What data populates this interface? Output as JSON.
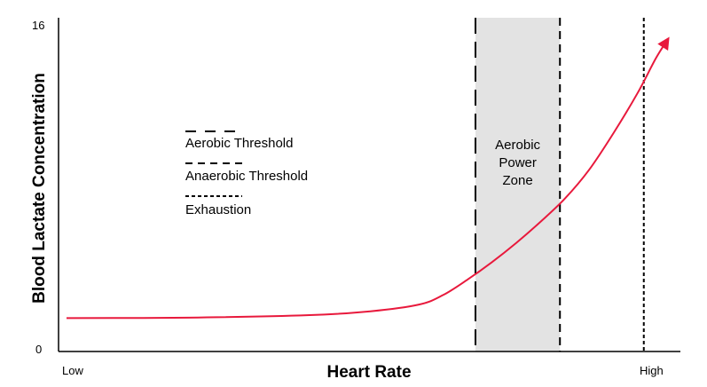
{
  "chart_data": {
    "type": "line",
    "title": "",
    "xlabel": "Heart Rate",
    "ylabel": "Blood Lactate Concentration",
    "xlim": [
      0,
      100
    ],
    "ylim": [
      0,
      16
    ],
    "x_tick_labels": [
      "Low",
      "High"
    ],
    "y_tick_labels": [
      "0",
      "16"
    ],
    "grid": false,
    "colors": {
      "curve": "#e8193c",
      "zone": "#e3e3e3",
      "lines": "#000000"
    },
    "series": [
      {
        "points": [
          [
            0,
            1.0
          ],
          [
            20,
            1.02
          ],
          [
            40,
            1.15
          ],
          [
            50,
            1.35
          ],
          [
            58,
            1.7
          ],
          [
            62,
            2.2
          ],
          [
            66,
            3.0
          ],
          [
            70,
            3.9
          ],
          [
            74,
            4.9
          ],
          [
            78,
            6.0
          ],
          [
            82,
            7.2
          ],
          [
            86,
            8.7
          ],
          [
            90,
            10.6
          ],
          [
            94,
            12.7
          ],
          [
            97,
            14.5
          ],
          [
            99,
            15.5
          ]
        ]
      }
    ],
    "thresholds": [
      {
        "label": "Aerobic Threshold",
        "x": 67.3,
        "style": "long-dash"
      },
      {
        "label": "Anaerobic Threshold",
        "x": 81.2,
        "style": "medium-dash"
      },
      {
        "label": "Exhaustion",
        "x": 95,
        "style": "short-dash"
      }
    ],
    "zone": {
      "label_lines": [
        "Aerobic",
        "Power",
        "Zone"
      ],
      "from": 67.3,
      "to": 81.2
    },
    "legend": {
      "placement": "left-center",
      "items": [
        {
          "label": "Aerobic Threshold",
          "style": "long-dash"
        },
        {
          "label": "Anaerobic Threshold",
          "style": "medium-dash"
        },
        {
          "label": "Exhaustion",
          "style": "short-dash"
        }
      ]
    }
  }
}
